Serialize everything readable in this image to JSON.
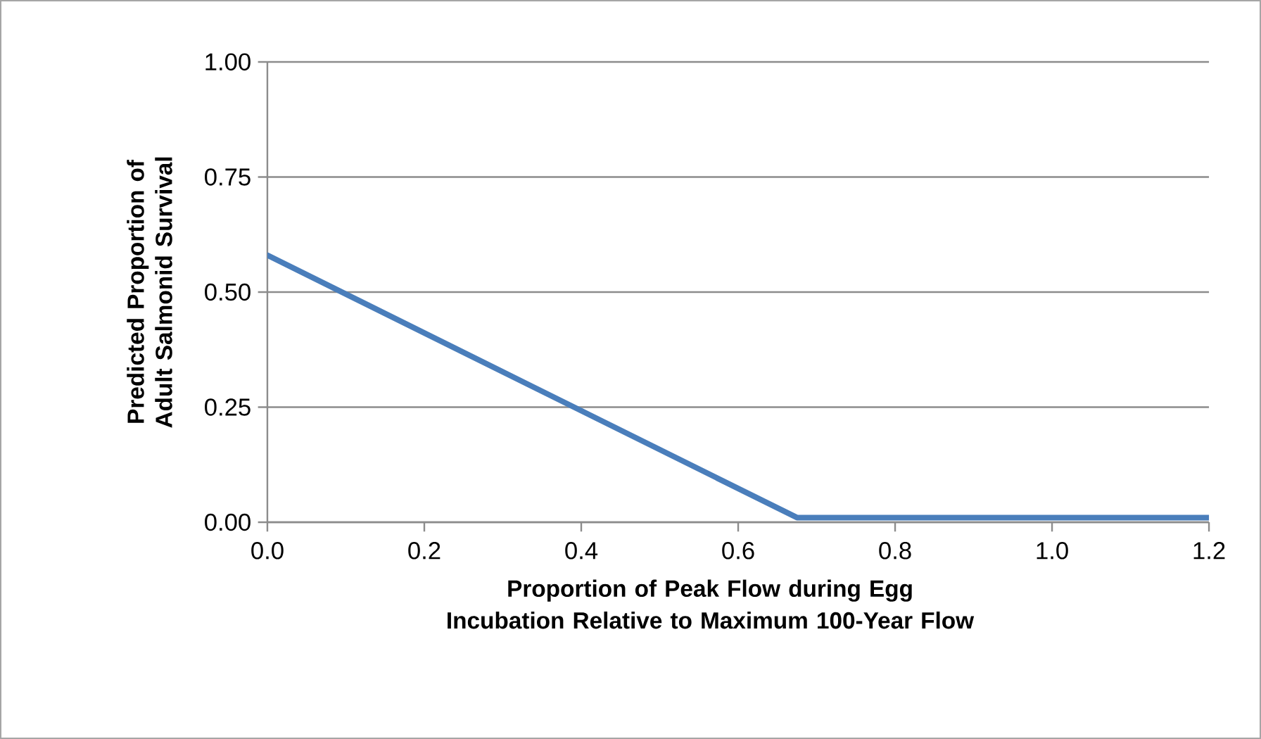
{
  "chart_data": {
    "type": "line",
    "xlabel": "Proportion of Peak Flow during Egg Incubation Relative to Maximum 100-Year Flow",
    "ylabel": "Predicted Proportion of Adult Salmonid Survival",
    "x": [
      0,
      0.675,
      1.2
    ],
    "series": [
      {
        "color": "#4a7ebb",
        "values": [
          0.58,
          0.01,
          0.01
        ]
      }
    ],
    "xlim": [
      0,
      1.2
    ],
    "ylim": [
      0,
      1
    ],
    "xticks": [
      {
        "value": 0,
        "label": "0.0"
      },
      {
        "value": 0.2,
        "label": "0.2"
      },
      {
        "value": 0.4,
        "label": "0.4"
      },
      {
        "value": 0.6,
        "label": "0.6"
      },
      {
        "value": 0.8,
        "label": "0.8"
      },
      {
        "value": 1,
        "label": "1.0"
      },
      {
        "value": 1.2,
        "label": "1.2"
      }
    ],
    "yticks": [
      {
        "value": 0,
        "label": "0.00"
      },
      {
        "value": 0.25,
        "label": "0.25"
      },
      {
        "value": 0.5,
        "label": "0.50"
      },
      {
        "value": 0.75,
        "label": "0.75"
      },
      {
        "value": 1,
        "label": "1.00"
      }
    ],
    "grid": "y",
    "legend": false,
    "marker": "none",
    "line_style": "solid"
  }
}
